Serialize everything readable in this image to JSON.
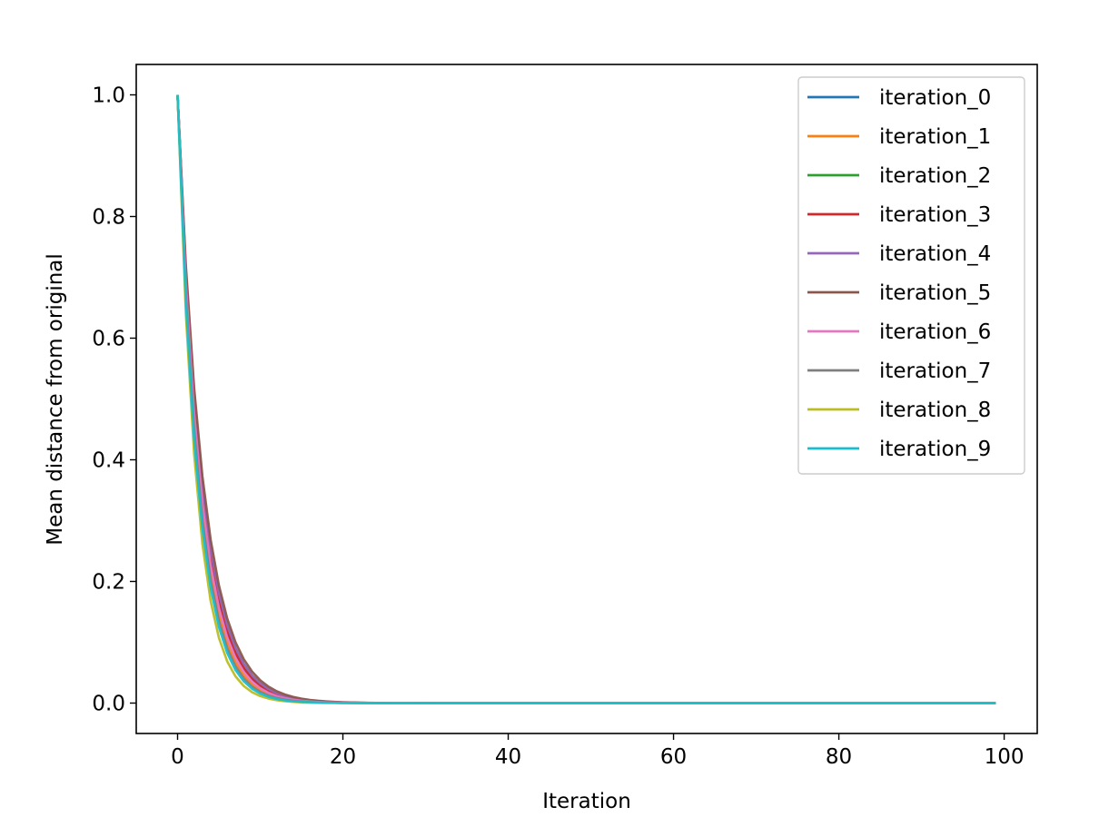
{
  "chart_data": {
    "type": "line",
    "title": "",
    "xlabel": "Iteration",
    "ylabel": "Mean distance from original",
    "xlim": [
      -5,
      104
    ],
    "ylim": [
      -0.05,
      1.05
    ],
    "xticks": [
      0,
      20,
      40,
      60,
      80,
      100
    ],
    "xtick_labels": [
      "0",
      "20",
      "40",
      "60",
      "80",
      "100"
    ],
    "yticks": [
      0.0,
      0.2,
      0.4,
      0.6,
      0.8,
      1.0
    ],
    "ytick_labels": [
      "0.0",
      "0.2",
      "0.4",
      "0.6",
      "0.8",
      "1.0"
    ],
    "grid": false,
    "legend_position": "top-right",
    "x_start": 0,
    "x_end": 99,
    "series": [
      {
        "name": "iteration_0",
        "color": "#1f77b4",
        "decay_rate": 0.7
      },
      {
        "name": "iteration_1",
        "color": "#ff7f0e",
        "decay_rate": 0.68
      },
      {
        "name": "iteration_2",
        "color": "#2ca02c",
        "decay_rate": 0.71
      },
      {
        "name": "iteration_3",
        "color": "#d62728",
        "decay_rate": 0.7
      },
      {
        "name": "iteration_4",
        "color": "#9467bd",
        "decay_rate": 0.71
      },
      {
        "name": "iteration_5",
        "color": "#8c564b",
        "decay_rate": 0.72
      },
      {
        "name": "iteration_6",
        "color": "#e377c2",
        "decay_rate": 0.69
      },
      {
        "name": "iteration_7",
        "color": "#7f7f7f",
        "decay_rate": 0.67
      },
      {
        "name": "iteration_8",
        "color": "#bcbd22",
        "decay_rate": 0.64
      },
      {
        "name": "iteration_9",
        "color": "#17becf",
        "decay_rate": 0.66
      }
    ]
  }
}
